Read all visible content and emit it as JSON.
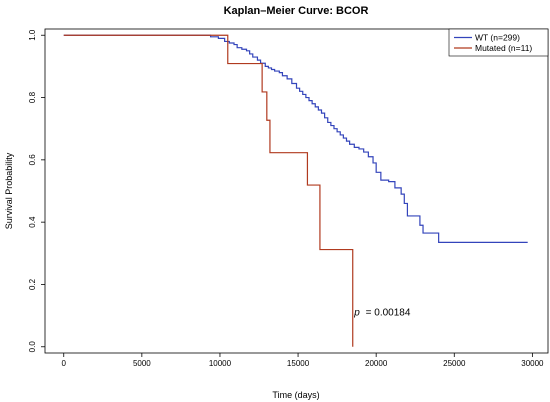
{
  "chart_data": {
    "type": "line",
    "title": "Kaplan–Meier Curve: BCOR",
    "xlabel": "Time (days)",
    "ylabel": "Survival Probability",
    "xlim": [
      -1200,
      31000
    ],
    "ylim": [
      -0.02,
      1.02
    ],
    "xticks": [
      0,
      5000,
      10000,
      15000,
      20000,
      25000,
      30000
    ],
    "yticks": [
      0.0,
      0.2,
      0.4,
      0.6,
      0.8,
      1.0
    ],
    "ytick_labels": [
      "0.0",
      "0.2",
      "0.4",
      "0.6",
      "0.8",
      "1.0"
    ],
    "grid": false,
    "legend_position": "top-right",
    "series": [
      {
        "name": "WT (n=299)",
        "color": "#3344bb",
        "step": true,
        "x": [
          0,
          9400,
          9900,
          10300,
          10600,
          10900,
          11100,
          11400,
          11700,
          11900,
          12100,
          12400,
          12600,
          12900,
          13100,
          13300,
          13500,
          13800,
          14000,
          14300,
          14600,
          14900,
          15100,
          15300,
          15500,
          15700,
          15900,
          16100,
          16300,
          16500,
          16700,
          16900,
          17100,
          17300,
          17500,
          17700,
          17900,
          18100,
          18300,
          18600,
          18900,
          19200,
          19500,
          19800,
          20000,
          20300,
          20800,
          21200,
          21600,
          21800,
          22000,
          22600,
          22800,
          23000,
          23500,
          24000,
          29700
        ],
        "y": [
          1.0,
          0.995,
          0.99,
          0.98,
          0.975,
          0.97,
          0.96,
          0.955,
          0.95,
          0.94,
          0.93,
          0.92,
          0.91,
          0.9,
          0.895,
          0.89,
          0.885,
          0.88,
          0.87,
          0.86,
          0.845,
          0.83,
          0.82,
          0.81,
          0.8,
          0.79,
          0.78,
          0.77,
          0.76,
          0.75,
          0.735,
          0.72,
          0.71,
          0.7,
          0.69,
          0.68,
          0.67,
          0.66,
          0.65,
          0.64,
          0.635,
          0.625,
          0.61,
          0.59,
          0.56,
          0.535,
          0.53,
          0.51,
          0.49,
          0.46,
          0.42,
          0.42,
          0.39,
          0.365,
          0.365,
          0.335,
          0.335
        ]
      },
      {
        "name": "Mutated (n=11)",
        "color": "#b03a1f",
        "step": true,
        "x": [
          0,
          10500,
          12700,
          13000,
          13200,
          15600,
          16400,
          18500
        ],
        "y": [
          1.0,
          0.909,
          0.818,
          0.727,
          0.623,
          0.519,
          0.312,
          0.0
        ]
      }
    ],
    "annotations": [
      {
        "label": "p",
        "value": "= 0.00184",
        "x": 18600,
        "y": 0.1
      }
    ]
  }
}
